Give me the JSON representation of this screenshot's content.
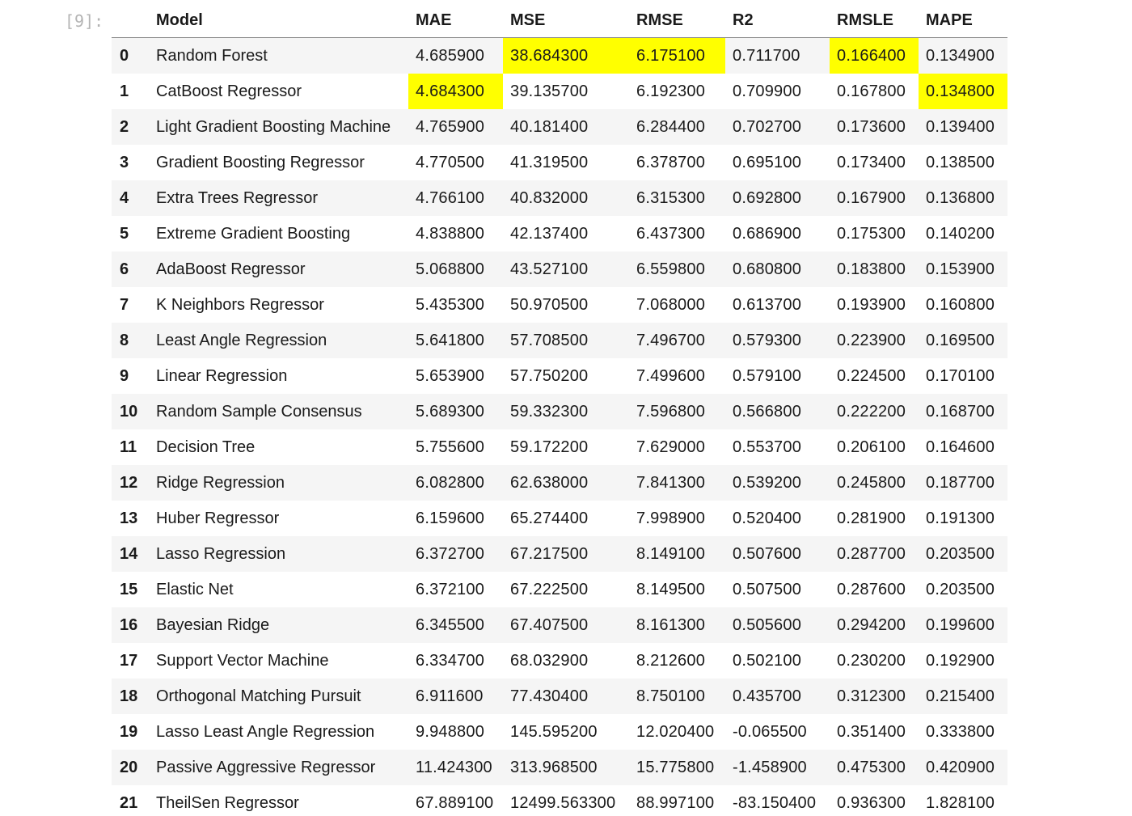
{
  "cell": {
    "prompt": "[9]:"
  },
  "table": {
    "columns": [
      "",
      "Model",
      "MAE",
      "MSE",
      "RMSE",
      "R2",
      "RMSLE",
      "MAPE"
    ],
    "highlight_color": "#ffff00",
    "rows": [
      {
        "index": "0",
        "model": "Random Forest",
        "mae": "4.685900",
        "mse": "38.684300",
        "rmse": "6.175100",
        "r2": "0.711700",
        "rmsle": "0.166400",
        "mape": "0.134900",
        "highlight": [
          "mse",
          "rmse",
          "rmsle"
        ]
      },
      {
        "index": "1",
        "model": "CatBoost Regressor",
        "mae": "4.684300",
        "mse": "39.135700",
        "rmse": "6.192300",
        "r2": "0.709900",
        "rmsle": "0.167800",
        "mape": "0.134800",
        "highlight": [
          "mae",
          "mape"
        ]
      },
      {
        "index": "2",
        "model": "Light Gradient Boosting Machine",
        "mae": "4.765900",
        "mse": "40.181400",
        "rmse": "6.284400",
        "r2": "0.702700",
        "rmsle": "0.173600",
        "mape": "0.139400",
        "highlight": []
      },
      {
        "index": "3",
        "model": "Gradient Boosting Regressor",
        "mae": "4.770500",
        "mse": "41.319500",
        "rmse": "6.378700",
        "r2": "0.695100",
        "rmsle": "0.173400",
        "mape": "0.138500",
        "highlight": []
      },
      {
        "index": "4",
        "model": "Extra Trees Regressor",
        "mae": "4.766100",
        "mse": "40.832000",
        "rmse": "6.315300",
        "r2": "0.692800",
        "rmsle": "0.167900",
        "mape": "0.136800",
        "highlight": []
      },
      {
        "index": "5",
        "model": "Extreme Gradient Boosting",
        "mae": "4.838800",
        "mse": "42.137400",
        "rmse": "6.437300",
        "r2": "0.686900",
        "rmsle": "0.175300",
        "mape": "0.140200",
        "highlight": []
      },
      {
        "index": "6",
        "model": "AdaBoost Regressor",
        "mae": "5.068800",
        "mse": "43.527100",
        "rmse": "6.559800",
        "r2": "0.680800",
        "rmsle": "0.183800",
        "mape": "0.153900",
        "highlight": []
      },
      {
        "index": "7",
        "model": "K Neighbors Regressor",
        "mae": "5.435300",
        "mse": "50.970500",
        "rmse": "7.068000",
        "r2": "0.613700",
        "rmsle": "0.193900",
        "mape": "0.160800",
        "highlight": []
      },
      {
        "index": "8",
        "model": "Least Angle Regression",
        "mae": "5.641800",
        "mse": "57.708500",
        "rmse": "7.496700",
        "r2": "0.579300",
        "rmsle": "0.223900",
        "mape": "0.169500",
        "highlight": []
      },
      {
        "index": "9",
        "model": "Linear Regression",
        "mae": "5.653900",
        "mse": "57.750200",
        "rmse": "7.499600",
        "r2": "0.579100",
        "rmsle": "0.224500",
        "mape": "0.170100",
        "highlight": []
      },
      {
        "index": "10",
        "model": "Random Sample Consensus",
        "mae": "5.689300",
        "mse": "59.332300",
        "rmse": "7.596800",
        "r2": "0.566800",
        "rmsle": "0.222200",
        "mape": "0.168700",
        "highlight": []
      },
      {
        "index": "11",
        "model": "Decision Tree",
        "mae": "5.755600",
        "mse": "59.172200",
        "rmse": "7.629000",
        "r2": "0.553700",
        "rmsle": "0.206100",
        "mape": "0.164600",
        "highlight": []
      },
      {
        "index": "12",
        "model": "Ridge Regression",
        "mae": "6.082800",
        "mse": "62.638000",
        "rmse": "7.841300",
        "r2": "0.539200",
        "rmsle": "0.245800",
        "mape": "0.187700",
        "highlight": []
      },
      {
        "index": "13",
        "model": "Huber Regressor",
        "mae": "6.159600",
        "mse": "65.274400",
        "rmse": "7.998900",
        "r2": "0.520400",
        "rmsle": "0.281900",
        "mape": "0.191300",
        "highlight": []
      },
      {
        "index": "14",
        "model": "Lasso Regression",
        "mae": "6.372700",
        "mse": "67.217500",
        "rmse": "8.149100",
        "r2": "0.507600",
        "rmsle": "0.287700",
        "mape": "0.203500",
        "highlight": []
      },
      {
        "index": "15",
        "model": "Elastic Net",
        "mae": "6.372100",
        "mse": "67.222500",
        "rmse": "8.149500",
        "r2": "0.507500",
        "rmsle": "0.287600",
        "mape": "0.203500",
        "highlight": []
      },
      {
        "index": "16",
        "model": "Bayesian Ridge",
        "mae": "6.345500",
        "mse": "67.407500",
        "rmse": "8.161300",
        "r2": "0.505600",
        "rmsle": "0.294200",
        "mape": "0.199600",
        "highlight": []
      },
      {
        "index": "17",
        "model": "Support Vector Machine",
        "mae": "6.334700",
        "mse": "68.032900",
        "rmse": "8.212600",
        "r2": "0.502100",
        "rmsle": "0.230200",
        "mape": "0.192900",
        "highlight": []
      },
      {
        "index": "18",
        "model": "Orthogonal Matching Pursuit",
        "mae": "6.911600",
        "mse": "77.430400",
        "rmse": "8.750100",
        "r2": "0.435700",
        "rmsle": "0.312300",
        "mape": "0.215400",
        "highlight": []
      },
      {
        "index": "19",
        "model": "Lasso Least Angle Regression",
        "mae": "9.948800",
        "mse": "145.595200",
        "rmse": "12.020400",
        "r2": "-0.065500",
        "rmsle": "0.351400",
        "mape": "0.333800",
        "highlight": []
      },
      {
        "index": "20",
        "model": "Passive Aggressive Regressor",
        "mae": "11.424300",
        "mse": "313.968500",
        "rmse": "15.775800",
        "r2": "-1.458900",
        "rmsle": "0.475300",
        "mape": "0.420900",
        "highlight": []
      },
      {
        "index": "21",
        "model": "TheilSen Regressor",
        "mae": "67.889100",
        "mse": "12499.563300",
        "rmse": "88.997100",
        "r2": "-83.150400",
        "rmsle": "0.936300",
        "mape": "1.828100",
        "highlight": []
      }
    ]
  }
}
